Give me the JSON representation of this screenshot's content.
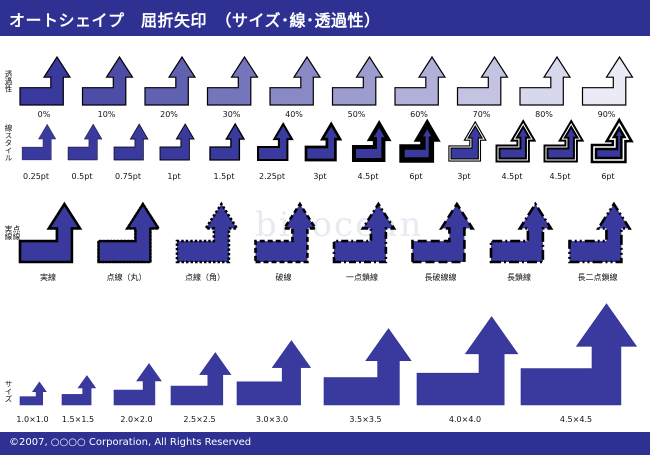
{
  "header": {
    "title": "オートシェイプ　屈折矢印　（サイズ･線･透過性）"
  },
  "footer": {
    "copyright": "©2007, ○○○○ Corporation, All Rights Reserved"
  },
  "colors": {
    "brand": "#2e3192",
    "fill": "#3a3a9e",
    "stroke": "#000000",
    "background": "#ffffff"
  },
  "row_labels": {
    "transparency": "透過性",
    "line_style_a": "線スタイル",
    "dash_a": "実線",
    "dash_b": "点線",
    "size": "サイズ"
  },
  "transparency": [
    "0%",
    "10%",
    "20%",
    "30%",
    "40%",
    "50%",
    "60%",
    "70%",
    "80%",
    "90%"
  ],
  "transparency_values": [
    0,
    0.1,
    0.2,
    0.3,
    0.4,
    0.5,
    0.6,
    0.7,
    0.8,
    0.9
  ],
  "line_style": [
    "0.25pt",
    "0.5pt",
    "0.75pt",
    "1pt",
    "1.5pt",
    "2.25pt",
    "3pt",
    "4.5pt",
    "6pt",
    "3pt",
    "4.5pt",
    "4.5pt",
    "6pt"
  ],
  "dash": [
    "実線",
    "点線（丸）",
    "点線（角）",
    "破線",
    "一点鎖線",
    "長破線線",
    "長鎖線",
    "長二点鎖線"
  ],
  "size": [
    "1.0×1.0",
    "1.5×1.5",
    "2.0×2.0",
    "2.5×2.5",
    "3.0×3.0",
    "3.5×3.5",
    "4.0×4.0",
    "4.5×4.5"
  ],
  "watermark": "bizocean"
}
